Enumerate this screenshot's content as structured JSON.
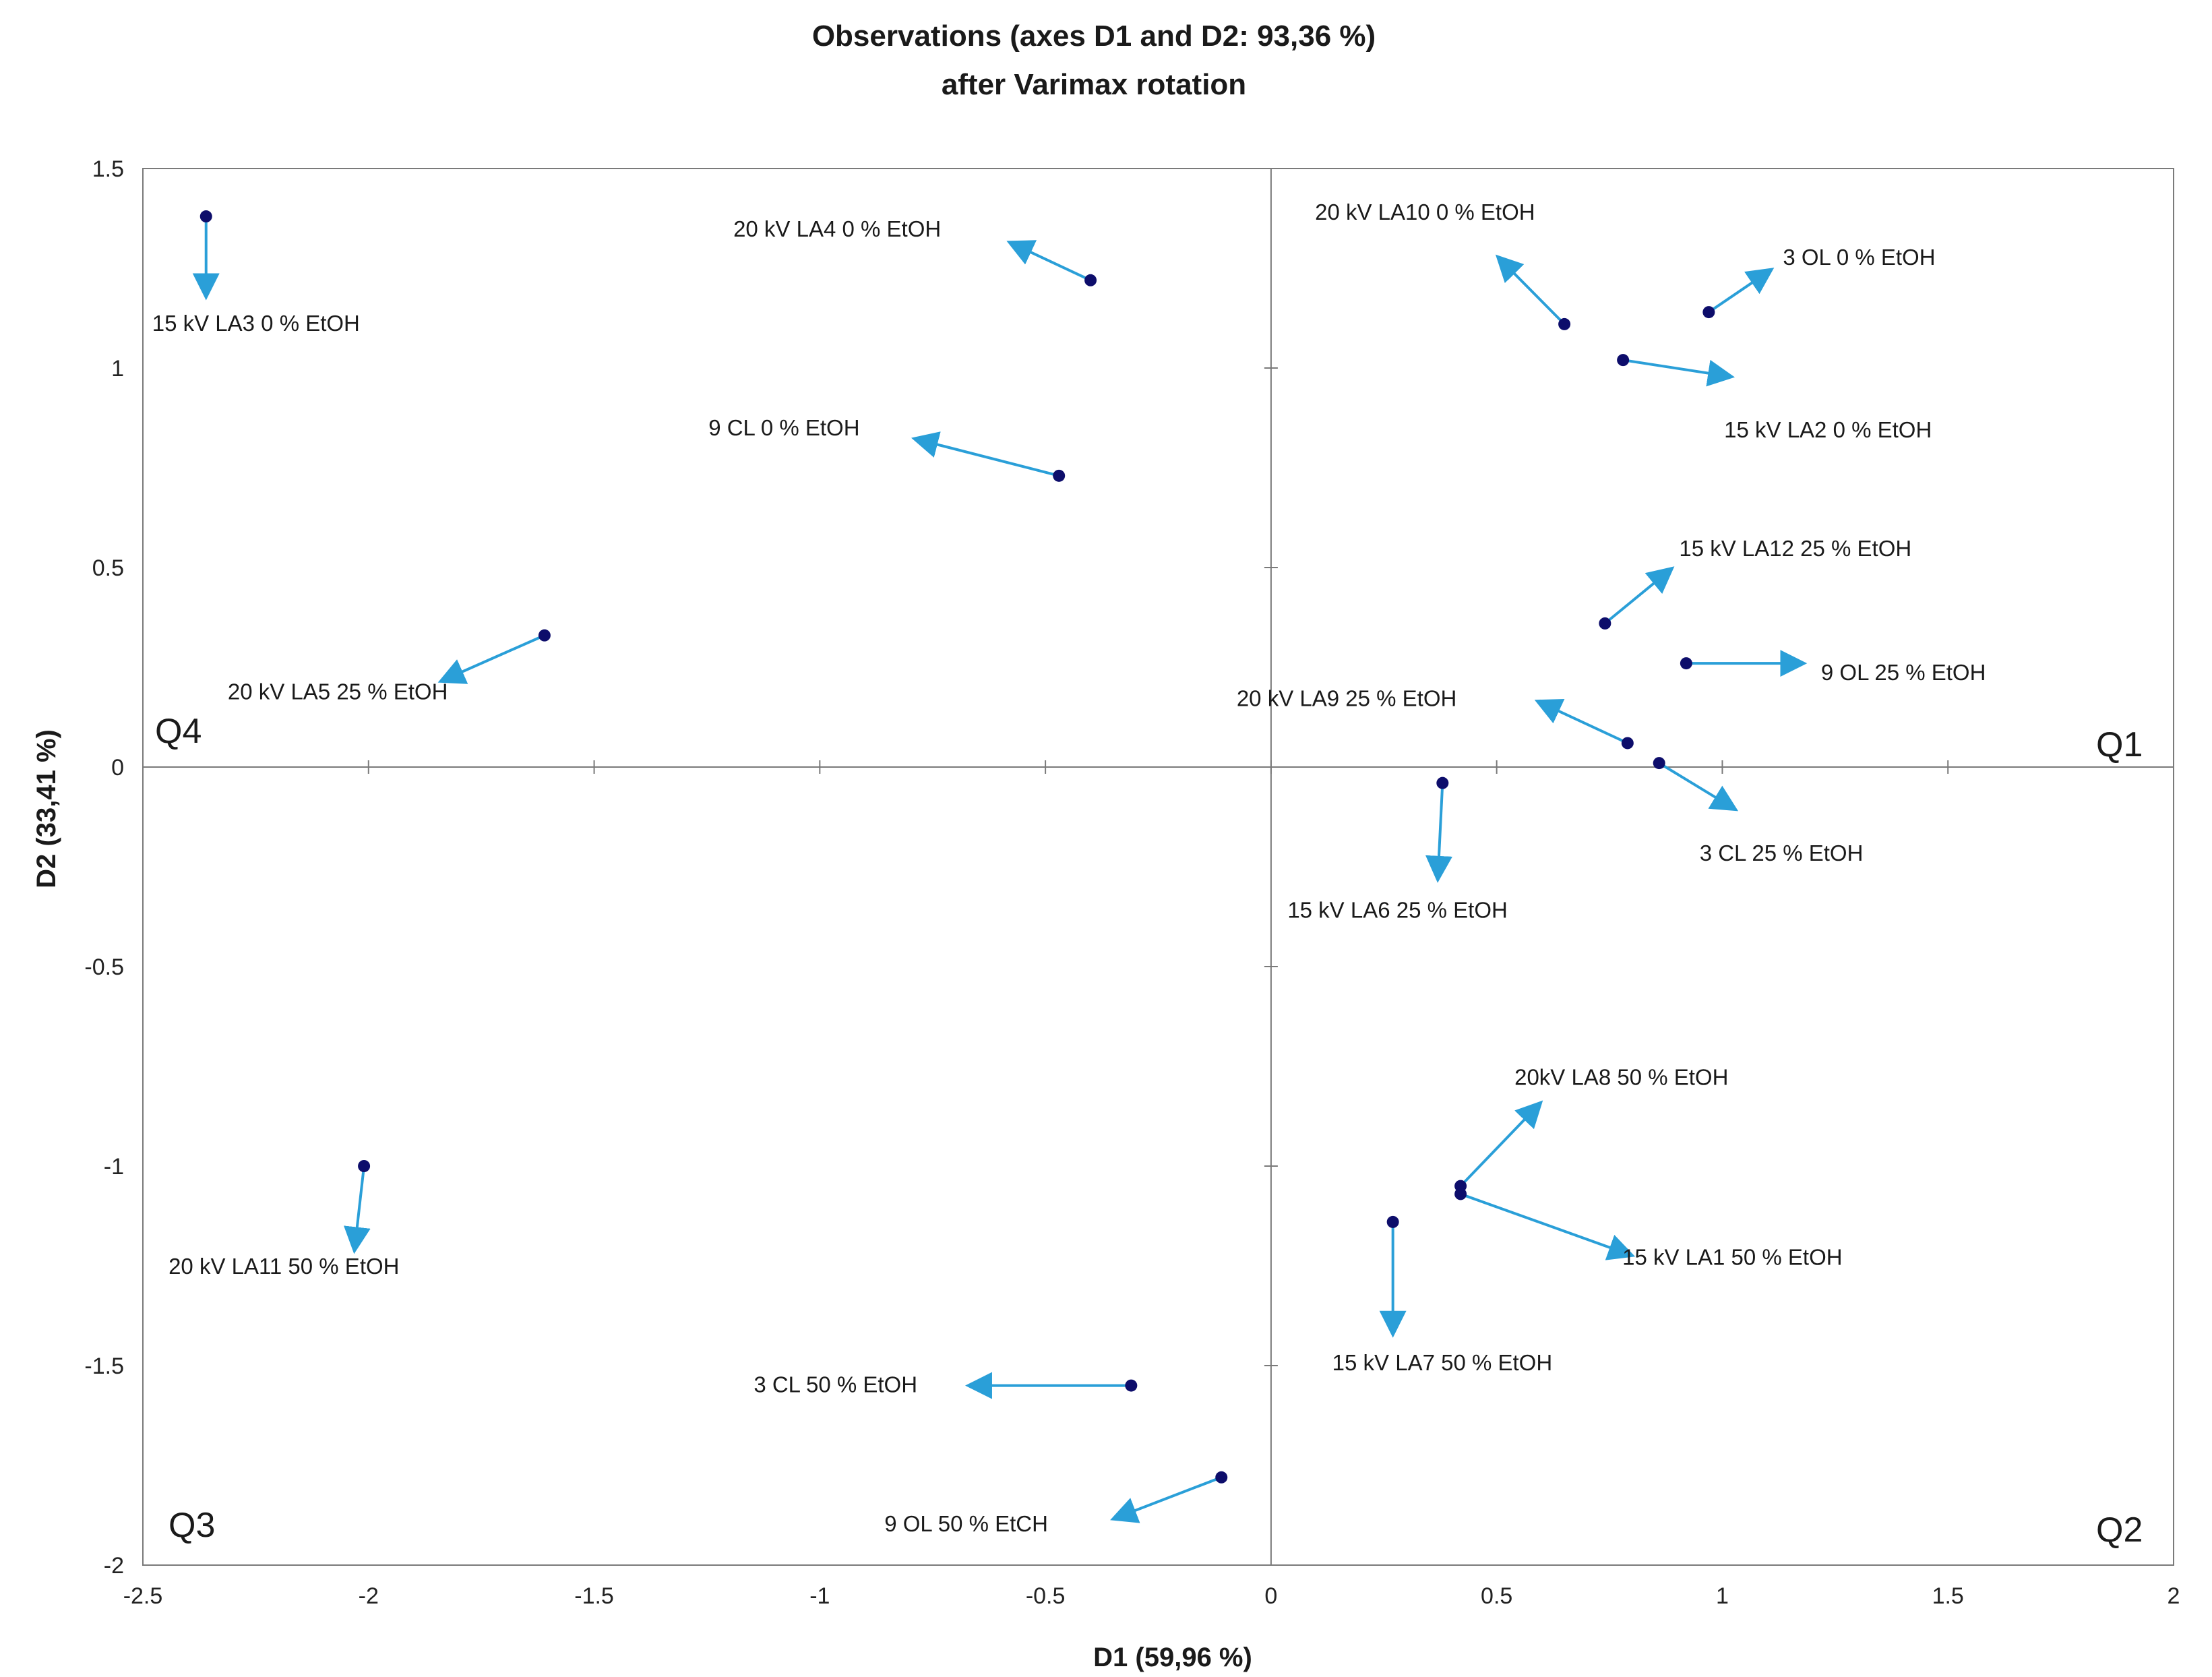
{
  "chart_data": {
    "type": "scatter",
    "title": "Observations (axes D1 and D2: 93,36 %)",
    "subtitle": "after Varimax rotation",
    "xlabel": "D1 (59,96 %)",
    "ylabel": "D2 (33,41 %)",
    "xlim": [
      -2.5,
      2
    ],
    "ylim": [
      -2,
      1.5
    ],
    "xticks": [
      -2.5,
      -2,
      -1.5,
      -1,
      -0.5,
      0,
      0.5,
      1,
      1.5,
      2
    ],
    "yticks": [
      -2,
      -1.5,
      -1,
      -0.5,
      0,
      0.5,
      1,
      1.5
    ],
    "xtick_labels": [
      "-2.5",
      "-2",
      "-1.5",
      "-1",
      "-0.5",
      "0",
      "0.5",
      "1",
      "1.5",
      "2"
    ],
    "ytick_labels": [
      "-2",
      "-1.5",
      "-1",
      "-0.5",
      "0",
      "0.5",
      "1",
      "1.5"
    ],
    "quadrant_labels": [
      "Q1",
      "Q2",
      "Q3",
      "Q4"
    ],
    "colors": {
      "point": "#0d0d6b",
      "arrow": "#2a9fd8",
      "axis": "#7a7a7a",
      "frame": "#7a7a7a"
    },
    "points": [
      {
        "label": "15 kV LA3 0 % EtOH",
        "x": -2.36,
        "y": 1.38,
        "arrow_to": [
          -2.36,
          1.19
        ]
      },
      {
        "label": "20 kV LA4 0 % EtOH",
        "x": -0.4,
        "y": 1.22,
        "arrow_to": [
          -0.57,
          1.31
        ]
      },
      {
        "label": "9 CL 0 % EtOH",
        "x": -0.47,
        "y": 0.73,
        "arrow_to": [
          -0.78,
          0.82
        ]
      },
      {
        "label": "20 kV LA5 25 % EtOH",
        "x": -1.61,
        "y": 0.33,
        "arrow_to": [
          -1.83,
          0.22
        ]
      },
      {
        "label": "20 kV LA10 0 % EtOH",
        "x": 0.65,
        "y": 1.11,
        "arrow_to": [
          0.51,
          1.27
        ]
      },
      {
        "label": "3 OL 0 % EtOH",
        "x": 0.97,
        "y": 1.14,
        "arrow_to": [
          1.1,
          1.24
        ]
      },
      {
        "label": "15 kV LA2 0 % EtOH",
        "x": 0.78,
        "y": 1.02,
        "arrow_to": [
          1.01,
          0.98
        ]
      },
      {
        "label": "15 kV LA12 25 % EtOH",
        "x": 0.74,
        "y": 0.36,
        "arrow_to": [
          0.88,
          0.49
        ]
      },
      {
        "label": "9 OL 25 % EtOH",
        "x": 0.92,
        "y": 0.26,
        "arrow_to": [
          1.17,
          0.26
        ]
      },
      {
        "label": "20 kV LA9 25 % EtOH",
        "x": 0.79,
        "y": 0.06,
        "arrow_to": [
          0.6,
          0.16
        ]
      },
      {
        "label": "3 CL 25 % EtOH",
        "x": 0.86,
        "y": 0.01,
        "arrow_to": [
          1.02,
          -0.1
        ]
      },
      {
        "label": "15 kV LA6 25 % EtOH",
        "x": 0.38,
        "y": -0.04,
        "arrow_to": [
          0.37,
          -0.27
        ]
      },
      {
        "label": "20kV LA8 50 % EtOH",
        "x": 0.42,
        "y": -1.05,
        "arrow_to": [
          0.59,
          -0.85
        ]
      },
      {
        "label": "15 kV LA1 50 % EtOH",
        "x": 0.42,
        "y": -1.07,
        "arrow_to": [
          0.79,
          -1.22
        ]
      },
      {
        "label": "15 kV LA7 50 % EtOH",
        "x": 0.27,
        "y": -1.14,
        "arrow_to": [
          0.27,
          -1.41
        ]
      },
      {
        "label": "20 kV LA11 50 % EtOH",
        "x": -2.01,
        "y": -1.0,
        "arrow_to": [
          -2.03,
          -1.2
        ]
      },
      {
        "label": "3 CL 50 % EtOH",
        "x": -0.31,
        "y": -1.55,
        "arrow_to": [
          -0.66,
          -1.55
        ]
      },
      {
        "label": "9 OL 50 % EtCH",
        "x": -0.11,
        "y": -1.78,
        "arrow_to": [
          -0.34,
          -1.88
        ]
      }
    ]
  }
}
